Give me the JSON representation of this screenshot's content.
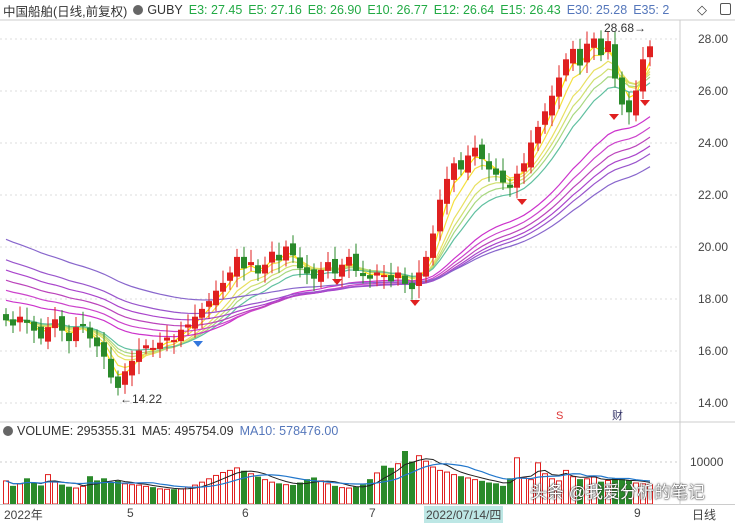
{
  "header": {
    "stock_name": "中国船舶",
    "mode": "(日线,前复权)",
    "indicator": "GUBY",
    "emas": [
      {
        "label": "E3: 27.45",
        "color": "g"
      },
      {
        "label": "E5: 27.16",
        "color": "g"
      },
      {
        "label": "E8: 26.90",
        "color": "g"
      },
      {
        "label": "E10: 26.77",
        "color": "g"
      },
      {
        "label": "E12: 26.64",
        "color": "g"
      },
      {
        "label": "E15: 26.43",
        "color": "g"
      },
      {
        "label": "E30: 25.28",
        "color": "b"
      },
      {
        "label": "E35: 2",
        "color": "b"
      }
    ]
  },
  "price_axis": [
    "28.00",
    "26.00",
    "24.00",
    "22.00",
    "20.00",
    "18.00",
    "16.00",
    "14.00"
  ],
  "annotations": {
    "low": "14.22",
    "high": "28.68",
    "marker_s": "S",
    "marker_cai": "财"
  },
  "volume": {
    "label": "VOLUME: 295355.31",
    "ma5": "MA5: 495754.09",
    "ma10": "MA10: 578476.00",
    "axis_label": "10000"
  },
  "time_axis": {
    "labels": [
      "2022年",
      "5",
      "6",
      "7",
      "9"
    ],
    "selected": "2022/07/14/四",
    "period": "日线"
  },
  "watermark": "头条 @我爱分析的笔记",
  "colors": {
    "up": "#e02020",
    "down": "#2a8a2a"
  },
  "chart_data": {
    "type": "candlestick",
    "ylim": [
      13.5,
      29
    ],
    "closes": [
      17.2,
      17.0,
      17.3,
      17.1,
      16.8,
      16.5,
      16.9,
      17.2,
      16.8,
      16.4,
      16.9,
      17.0,
      16.5,
      16.2,
      15.8,
      15.0,
      14.6,
      15.2,
      15.6,
      16.0,
      16.2,
      16.1,
      16.3,
      16.5,
      16.4,
      16.8,
      17.0,
      17.3,
      17.6,
      17.9,
      18.3,
      18.6,
      19.0,
      19.6,
      19.2,
      19.4,
      19.0,
      19.3,
      19.8,
      19.5,
      20.0,
      19.7,
      19.2,
      19.0,
      18.8,
      19.1,
      19.4,
      19.0,
      19.3,
      19.6,
      19.1,
      18.9,
      18.8,
      19.0,
      18.9,
      18.7,
      19.0,
      18.6,
      18.4,
      19.0,
      19.6,
      20.5,
      21.8,
      22.6,
      23.2,
      23.0,
      23.5,
      23.8,
      23.4,
      23.0,
      22.8,
      22.5,
      22.3,
      22.8,
      23.2,
      24.0,
      24.6,
      25.2,
      25.8,
      26.5,
      27.2,
      27.6,
      27.0,
      27.8,
      28.0,
      27.4,
      27.9,
      26.5,
      25.5,
      25.2,
      26.0,
      27.2,
      27.7
    ],
    "volumes": [
      5500,
      4200,
      4800,
      6000,
      5000,
      4300,
      7000,
      5200,
      4500,
      4000,
      3800,
      4200,
      6500,
      5500,
      6000,
      5000,
      5400,
      4800,
      4600,
      4500,
      4200,
      3900,
      3600,
      3500,
      3400,
      3600,
      4000,
      4500,
      5200,
      6000,
      6800,
      7500,
      8000,
      8600,
      7800,
      7200,
      6400,
      5800,
      5200,
      4800,
      4600,
      4400,
      5000,
      5800,
      6200,
      5500,
      4800,
      4200,
      3900,
      3800,
      4000,
      4500,
      5800,
      7400,
      9000,
      8500,
      9600,
      12500,
      10000,
      11500,
      10200,
      8800,
      8000,
      7600,
      7000,
      6500,
      6200,
      5800,
      5400,
      5000,
      4800,
      4200,
      6000,
      11000,
      6200,
      5800,
      9800,
      7200,
      6000,
      5500,
      8000,
      6500,
      5800,
      6000,
      6400,
      5200,
      5600,
      6000,
      5800,
      5500,
      5000,
      4800,
      4600
    ]
  }
}
